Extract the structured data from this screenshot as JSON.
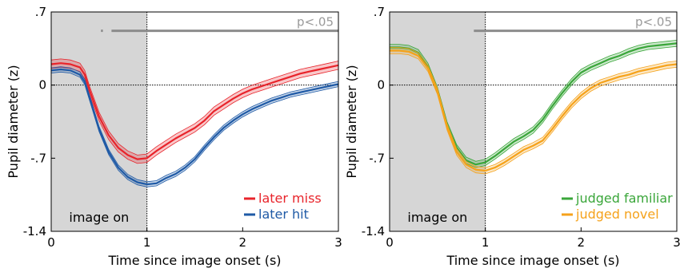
{
  "chart_data": [
    {
      "type": "line",
      "xlabel": "Time since image onset (s)",
      "ylabel": "Pupil diameter (z)",
      "xlim": [
        0,
        3
      ],
      "ylim": [
        -1.4,
        0.7
      ],
      "xticks": [
        "0",
        "1",
        "2",
        "3"
      ],
      "yticks": [
        "-1.4",
        "-.7",
        "0",
        ".7"
      ],
      "shaded_region": {
        "x": [
          0,
          1
        ],
        "label": "image on",
        "color": "#d6d6d6"
      },
      "zero_line": 0,
      "onset_line": 1,
      "significance": {
        "label": "p<.05",
        "segments": [
          [
            0.52,
            0.54
          ],
          [
            0.63,
            3.0
          ]
        ],
        "y": 0.52,
        "color": "#8c8c8c"
      },
      "legend_position": "bottom-right",
      "series": [
        {
          "name": "later miss",
          "color": "#e8242b",
          "x": [
            0,
            0.1,
            0.2,
            0.3,
            0.35,
            0.4,
            0.5,
            0.6,
            0.7,
            0.8,
            0.9,
            1.0,
            1.1,
            1.2,
            1.3,
            1.4,
            1.5,
            1.6,
            1.7,
            1.8,
            1.9,
            2.0,
            2.1,
            2.2,
            2.3,
            2.4,
            2.5,
            2.6,
            2.7,
            2.8,
            2.9,
            3.0
          ],
          "y": [
            0.2,
            0.21,
            0.2,
            0.17,
            0.1,
            -0.05,
            -0.3,
            -0.48,
            -0.6,
            -0.67,
            -0.71,
            -0.7,
            -0.63,
            -0.57,
            -0.51,
            -0.46,
            -0.41,
            -0.34,
            -0.25,
            -0.19,
            -0.13,
            -0.08,
            -0.04,
            -0.01,
            0.02,
            0.05,
            0.08,
            0.11,
            0.13,
            0.15,
            0.17,
            0.19
          ],
          "band": 0.04
        },
        {
          "name": "later hit",
          "color": "#1f5aa6",
          "x": [
            0,
            0.1,
            0.2,
            0.3,
            0.35,
            0.4,
            0.5,
            0.6,
            0.7,
            0.8,
            0.9,
            1.0,
            1.1,
            1.2,
            1.3,
            1.4,
            1.5,
            1.6,
            1.7,
            1.8,
            1.9,
            2.0,
            2.1,
            2.2,
            2.3,
            2.4,
            2.5,
            2.6,
            2.7,
            2.8,
            2.9,
            3.0
          ],
          "y": [
            0.14,
            0.15,
            0.14,
            0.1,
            0.03,
            -0.12,
            -0.42,
            -0.64,
            -0.79,
            -0.88,
            -0.93,
            -0.95,
            -0.94,
            -0.89,
            -0.85,
            -0.79,
            -0.71,
            -0.6,
            -0.5,
            -0.41,
            -0.34,
            -0.28,
            -0.23,
            -0.19,
            -0.15,
            -0.12,
            -0.09,
            -0.07,
            -0.05,
            -0.03,
            -0.01,
            0.01
          ],
          "band": 0.025
        }
      ]
    },
    {
      "type": "line",
      "xlabel": "Time since image onset (s)",
      "ylabel": "Pupil diameter (z)",
      "xlim": [
        0,
        3
      ],
      "ylim": [
        -1.4,
        0.7
      ],
      "xticks": [
        "0",
        "1",
        "2",
        "3"
      ],
      "yticks": [
        "-1.4",
        "-.7",
        "0",
        ".7"
      ],
      "shaded_region": {
        "x": [
          0,
          1
        ],
        "label": "image on",
        "color": "#d6d6d6"
      },
      "zero_line": 0,
      "onset_line": 1,
      "significance": {
        "label": "p<.05",
        "segments": [
          [
            0.88,
            3.0
          ]
        ],
        "y": 0.52,
        "color": "#8c8c8c"
      },
      "legend_position": "bottom-right",
      "series": [
        {
          "name": "judged familiar",
          "color": "#3aa63a",
          "x": [
            0,
            0.1,
            0.2,
            0.3,
            0.4,
            0.5,
            0.6,
            0.7,
            0.8,
            0.9,
            1.0,
            1.1,
            1.2,
            1.3,
            1.4,
            1.5,
            1.6,
            1.7,
            1.8,
            1.9,
            2.0,
            2.1,
            2.2,
            2.3,
            2.4,
            2.5,
            2.6,
            2.7,
            2.8,
            2.9,
            3.0
          ],
          "y": [
            0.36,
            0.36,
            0.35,
            0.31,
            0.18,
            -0.05,
            -0.38,
            -0.6,
            -0.72,
            -0.76,
            -0.74,
            -0.68,
            -0.61,
            -0.54,
            -0.49,
            -0.43,
            -0.33,
            -0.2,
            -0.08,
            0.03,
            0.12,
            0.17,
            0.21,
            0.25,
            0.28,
            0.32,
            0.35,
            0.37,
            0.38,
            0.39,
            0.4
          ],
          "band": 0.03
        },
        {
          "name": "judged novel",
          "color": "#f5a21b",
          "x": [
            0,
            0.1,
            0.2,
            0.3,
            0.4,
            0.5,
            0.6,
            0.7,
            0.8,
            0.9,
            1.0,
            1.1,
            1.2,
            1.3,
            1.4,
            1.5,
            1.6,
            1.7,
            1.8,
            1.9,
            2.0,
            2.1,
            2.2,
            2.3,
            2.4,
            2.5,
            2.6,
            2.7,
            2.8,
            2.9,
            3.0
          ],
          "y": [
            0.33,
            0.33,
            0.32,
            0.28,
            0.16,
            -0.06,
            -0.4,
            -0.64,
            -0.76,
            -0.81,
            -0.82,
            -0.79,
            -0.74,
            -0.68,
            -0.62,
            -0.58,
            -0.53,
            -0.42,
            -0.3,
            -0.19,
            -0.1,
            -0.03,
            0.02,
            0.05,
            0.08,
            0.1,
            0.13,
            0.15,
            0.17,
            0.19,
            0.2
          ],
          "band": 0.03
        }
      ]
    }
  ]
}
